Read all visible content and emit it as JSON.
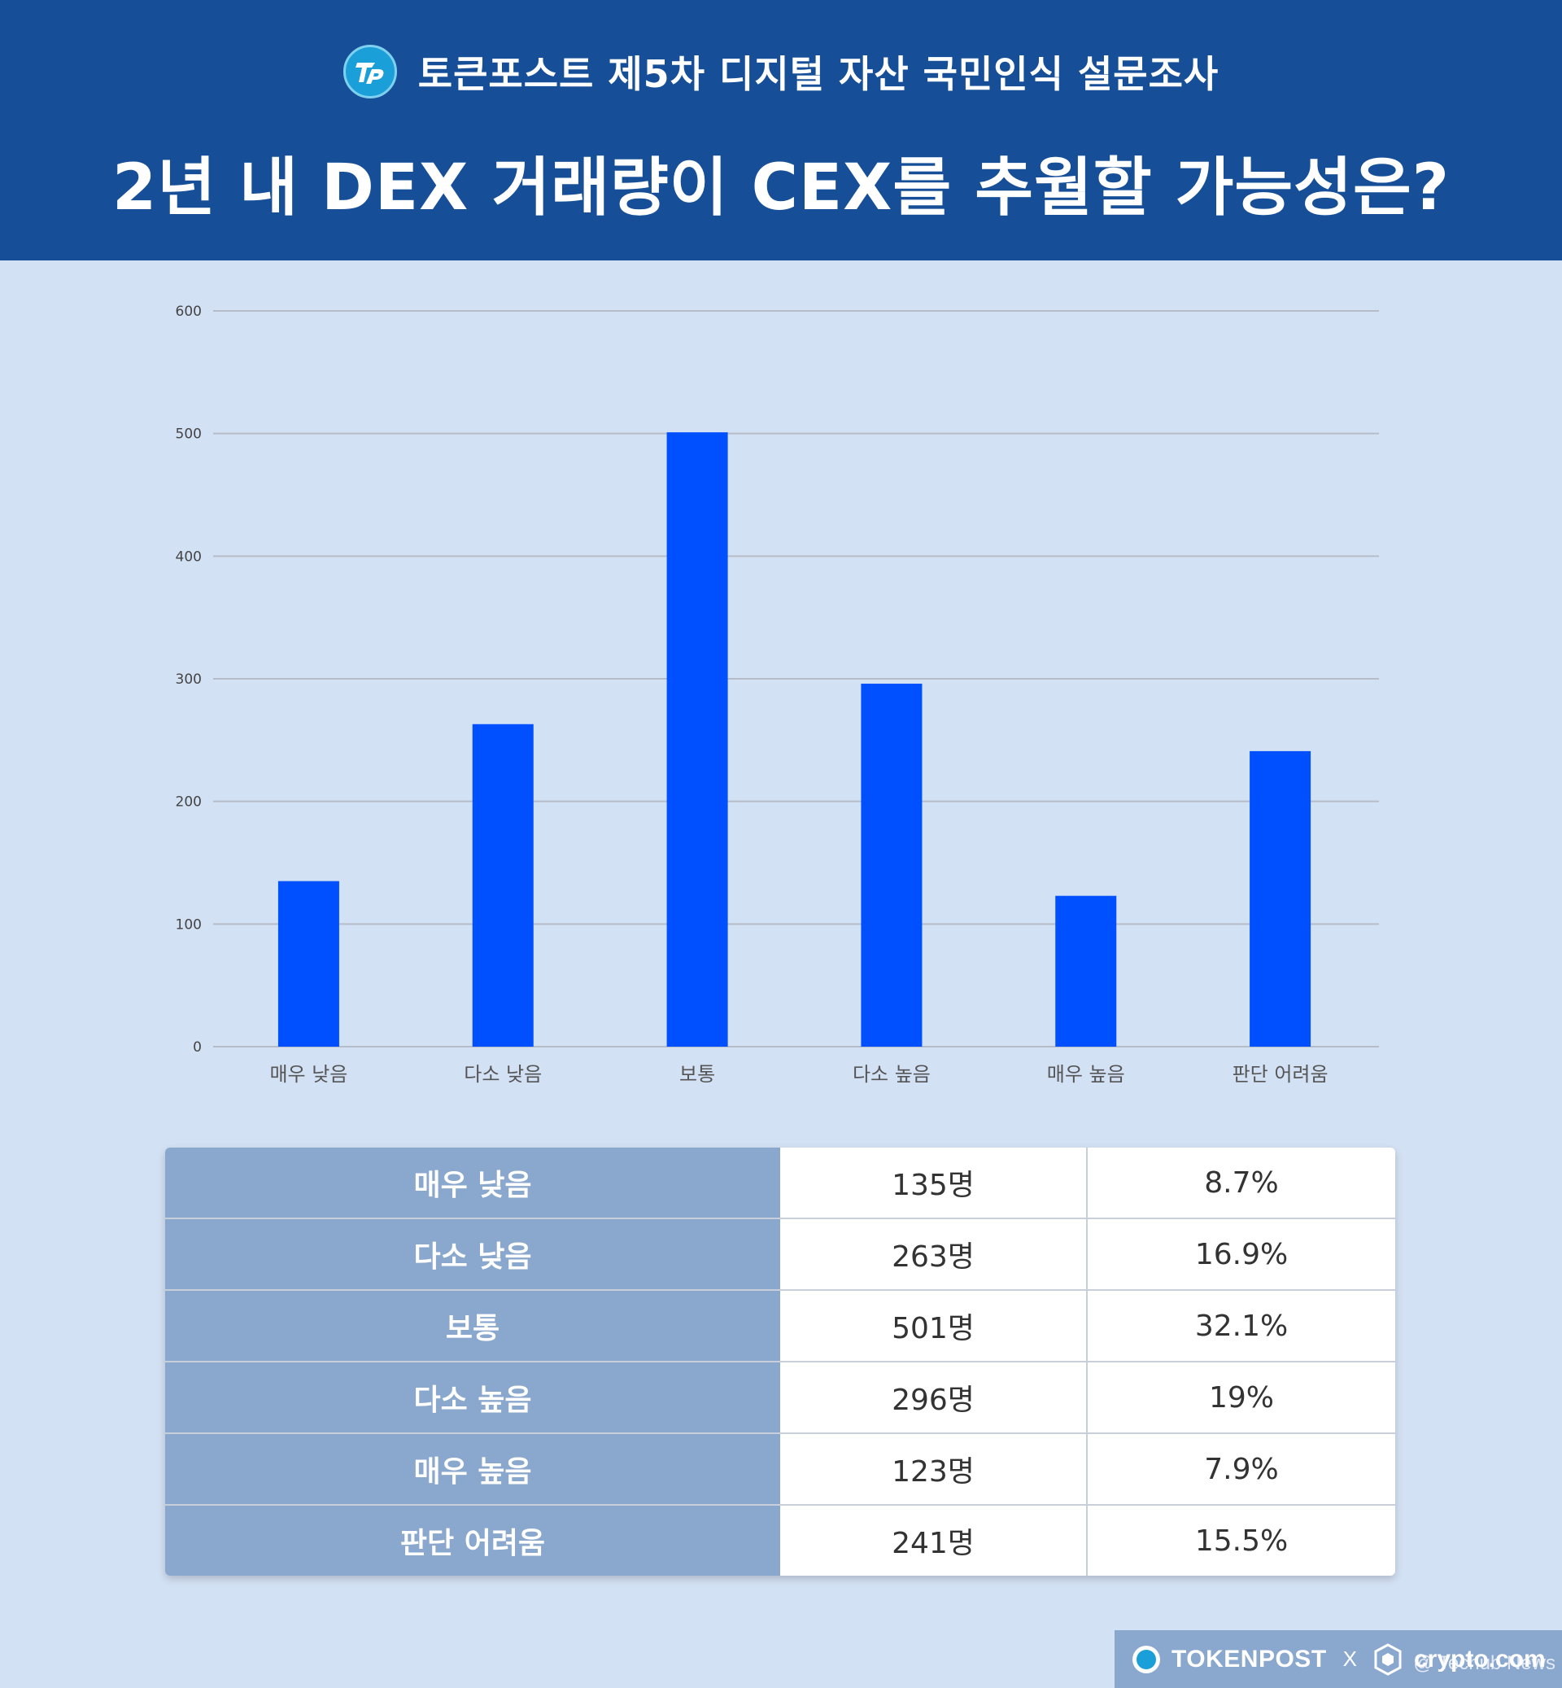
{
  "header": {
    "subtitle": "토큰포스트 제5차 디지털 자산 국민인식 설문조사",
    "title": "2년 내 DEX 거래량이 CEX를 추월할 가능성은?"
  },
  "chart_data": {
    "type": "bar",
    "categories": [
      "매우 낮음",
      "다소 낮음",
      "보통",
      "다소 높음",
      "매우 높음",
      "판단 어려움"
    ],
    "values": [
      135,
      263,
      501,
      296,
      123,
      241
    ],
    "yticks": [
      0,
      100,
      200,
      300,
      400,
      500,
      600
    ],
    "ylim": [
      0,
      600
    ],
    "grid": true,
    "bar_color": "#0050ff"
  },
  "table": {
    "rows": [
      {
        "label": "매우 낮음",
        "count": "135명",
        "percent": "8.7%"
      },
      {
        "label": "다소 낮음",
        "count": "263명",
        "percent": "16.9%"
      },
      {
        "label": "보통",
        "count": "501명",
        "percent": "32.1%"
      },
      {
        "label": "다소 높음",
        "count": "296명",
        "percent": "19%"
      },
      {
        "label": "매우 높음",
        "count": "123명",
        "percent": "7.9%"
      },
      {
        "label": "판단 어려움",
        "count": "241명",
        "percent": "15.5%"
      }
    ]
  },
  "footer": {
    "brand_left": "TOKENPOST",
    "separator": "X",
    "brand_right": "crypto.com",
    "watermark": "@ Techub News"
  },
  "colors": {
    "header_bg": "#164f98",
    "page_bg": "#d3e1f4",
    "table_label_bg": "#8aa7cd"
  }
}
